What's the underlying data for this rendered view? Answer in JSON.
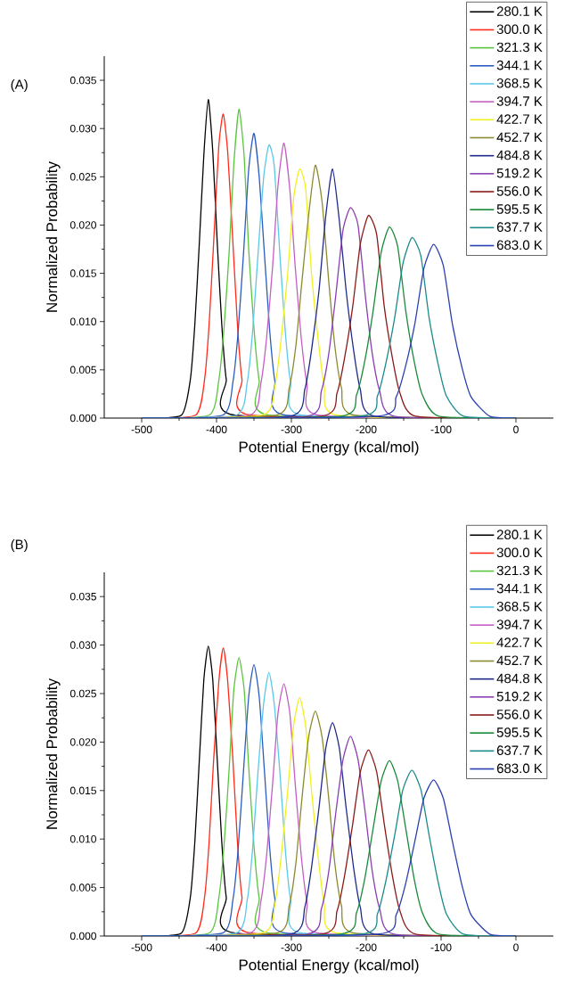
{
  "chart_data": [
    {
      "type": "line",
      "title": "(A)",
      "xlabel": "Potential Energy (kcal/mol)",
      "ylabel": "Normalized Probability",
      "xlim": [
        -550,
        50
      ],
      "ylim": [
        0,
        0.0375
      ],
      "xticks": [
        -500,
        -400,
        -300,
        -200,
        -100,
        0
      ],
      "yticks": [
        {
          "value": 0,
          "label": "0.000"
        },
        {
          "value": 0.005,
          "label": "0.005"
        },
        {
          "value": 0.01,
          "label": "0.010"
        },
        {
          "value": 0.015,
          "label": "0.015"
        },
        {
          "value": 0.02,
          "label": "0.020"
        },
        {
          "value": 0.025,
          "label": "0.025"
        },
        {
          "value": 0.03,
          "label": "0.030"
        },
        {
          "value": 0.035,
          "label": "0.035"
        }
      ],
      "legend": "top right",
      "series": [
        {
          "name": "280.1 K",
          "color": "#000000",
          "x": [
            -500,
            -447,
            -435,
            -429,
            -423,
            -417,
            -411,
            -405,
            -399,
            -393,
            -387,
            -375,
            0
          ],
          "values": [
            0,
            0.0003,
            0.004,
            0.0097,
            0.0181,
            0.0272,
            0.033,
            0.0276,
            0.0181,
            0.0097,
            0.004,
            0.0003,
            0
          ]
        },
        {
          "name": "300.0 K",
          "color": "#ff2a1a",
          "x": [
            -500,
            -428,
            -416,
            -410,
            -404,
            -397,
            -391,
            -385,
            -378,
            -372,
            -366,
            -354,
            0
          ],
          "values": [
            0,
            0.0003,
            0.004,
            0.0096,
            0.018,
            0.0282,
            0.0315,
            0.0275,
            0.018,
            0.0096,
            0.004,
            0.0003,
            0
          ]
        },
        {
          "name": "321.3 K",
          "color": "#5bc43f",
          "x": [
            -500,
            -410,
            -397,
            -390,
            -383,
            -377,
            -370,
            -363,
            -357,
            -350,
            -343,
            -330,
            0
          ],
          "values": [
            0,
            0.0003,
            0.0039,
            0.0093,
            0.0174,
            0.0262,
            0.032,
            0.027,
            0.0174,
            0.0093,
            0.0039,
            0.0003,
            0
          ]
        },
        {
          "name": "344.1 K",
          "color": "#2b5cbf",
          "x": [
            -500,
            -392,
            -378,
            -371,
            -364,
            -357,
            -350,
            -343,
            -336,
            -329,
            -322,
            -308,
            0
          ],
          "values": [
            0,
            0.0003,
            0.0038,
            0.0091,
            0.017,
            0.0258,
            0.0295,
            0.025,
            0.017,
            0.0091,
            0.0038,
            0.0003,
            0
          ]
        },
        {
          "name": "368.5 K",
          "color": "#5bc8e8",
          "x": [
            -500,
            -374,
            -359,
            -352,
            -345,
            -337,
            -330,
            -323,
            -315,
            -308,
            -301,
            -286,
            0
          ],
          "values": [
            0,
            0.0003,
            0.0037,
            0.0088,
            0.0165,
            0.025,
            0.0283,
            0.0262,
            0.0165,
            0.0088,
            0.0037,
            0.0003,
            0
          ]
        },
        {
          "name": "394.7 K",
          "color": "#c45fc4",
          "x": [
            -500,
            -356,
            -341,
            -333,
            -325,
            -318,
            -310,
            -302,
            -295,
            -287,
            -279,
            -264,
            0
          ],
          "values": [
            0,
            0.0003,
            0.0035,
            0.0084,
            0.0158,
            0.024,
            0.0285,
            0.0236,
            0.0158,
            0.0084,
            0.0035,
            0.0003,
            0
          ]
        },
        {
          "name": "422.7 K",
          "color": "#f0f020",
          "x": [
            -500,
            -339,
            -322,
            -314,
            -305,
            -297,
            -289,
            -281,
            -273,
            -264,
            -256,
            -239,
            0
          ],
          "values": [
            0,
            0.0003,
            0.0033,
            0.008,
            0.0149,
            0.0228,
            0.0258,
            0.0238,
            0.0149,
            0.008,
            0.0033,
            0.0003,
            0
          ]
        },
        {
          "name": "452.7 K",
          "color": "#8a8a30",
          "x": [
            -500,
            -320,
            -303,
            -294,
            -286,
            -277,
            -268,
            -259,
            -250,
            -242,
            -233,
            -216,
            0
          ],
          "values": [
            0,
            0.0003,
            0.0031,
            0.0075,
            0.0141,
            0.021,
            0.0262,
            0.0224,
            0.0141,
            0.0075,
            0.0031,
            0.0003,
            0
          ]
        },
        {
          "name": "484.8 K",
          "color": "#1f2a8a",
          "x": [
            -500,
            -301,
            -282,
            -273,
            -263,
            -254,
            -245,
            -236,
            -227,
            -217,
            -208,
            -189,
            0
          ],
          "values": [
            0,
            0.0002,
            0.003,
            0.0071,
            0.0133,
            0.021,
            0.0258,
            0.0205,
            0.0133,
            0.0071,
            0.003,
            0.0002,
            0
          ]
        },
        {
          "name": "519.2 K",
          "color": "#8a3fb0",
          "x": [
            -500,
            -279,
            -260,
            -250,
            -241,
            -231,
            -221,
            -211,
            -201,
            -192,
            -182,
            -163,
            0
          ],
          "values": [
            0,
            0.0002,
            0.0028,
            0.0067,
            0.0125,
            0.0195,
            0.0218,
            0.02,
            0.0125,
            0.0067,
            0.0028,
            0.0002,
            0
          ]
        },
        {
          "name": "556.0 K",
          "color": "#8a1a1a",
          "x": [
            -500,
            -260,
            -239,
            -229,
            -218,
            -208,
            -197,
            -186,
            -176,
            -165,
            -155,
            -134,
            0
          ],
          "values": [
            0,
            0.0002,
            0.0026,
            0.0062,
            0.0116,
            0.018,
            0.021,
            0.019,
            0.0116,
            0.0062,
            0.0026,
            0.0002,
            0
          ]
        },
        {
          "name": "595.5 K",
          "color": "#1a8a3a",
          "x": [
            -500,
            -235,
            -213,
            -202,
            -191,
            -180,
            -169,
            -158,
            -147,
            -136,
            -125,
            -103,
            0
          ],
          "values": [
            0,
            0.0002,
            0.0024,
            0.0059,
            0.011,
            0.0172,
            0.0198,
            0.0178,
            0.011,
            0.0059,
            0.0024,
            0.0002,
            0
          ]
        },
        {
          "name": "637.7 K",
          "color": "#1a8a8a",
          "x": [
            -500,
            -208,
            -185,
            -174,
            -162,
            -151,
            -139,
            -127,
            -116,
            -104,
            -93,
            -70,
            0
          ],
          "values": [
            0,
            0.0002,
            0.0023,
            0.0056,
            0.0104,
            0.016,
            0.0187,
            0.0168,
            0.0104,
            0.0056,
            0.0023,
            0.0002,
            0
          ]
        },
        {
          "name": "683.0 K",
          "color": "#2a3fb0",
          "x": [
            -500,
            -185,
            -160,
            -148,
            -135,
            -123,
            -110,
            -97,
            -85,
            -72,
            -60,
            -35,
            0
          ],
          "values": [
            0,
            0.0002,
            0.0022,
            0.0052,
            0.0098,
            0.0155,
            0.018,
            0.0158,
            0.0098,
            0.0052,
            0.0022,
            0.0002,
            0
          ]
        }
      ]
    },
    {
      "type": "line",
      "title": "(B)",
      "xlabel": "Potential Energy (kcal/mol)",
      "ylabel": "Normalized Probability",
      "xlim": [
        -550,
        50
      ],
      "ylim": [
        0,
        0.0375
      ],
      "xticks": [
        -500,
        -400,
        -300,
        -200,
        -100,
        0
      ],
      "yticks": [
        {
          "value": 0,
          "label": "0.000"
        },
        {
          "value": 0.005,
          "label": "0.005"
        },
        {
          "value": 0.01,
          "label": "0.010"
        },
        {
          "value": 0.015,
          "label": "0.015"
        },
        {
          "value": 0.02,
          "label": "0.020"
        },
        {
          "value": 0.025,
          "label": "0.025"
        },
        {
          "value": 0.03,
          "label": "0.030"
        },
        {
          "value": 0.035,
          "label": "0.035"
        }
      ],
      "legend": "top right",
      "series": [
        {
          "name": "280.1 K",
          "color": "#000000",
          "x": [
            -500,
            -447,
            -435,
            -429,
            -423,
            -417,
            -411,
            -405,
            -399,
            -393,
            -387,
            -375,
            0
          ],
          "values": [
            0,
            0.0003,
            0.004,
            0.0097,
            0.0181,
            0.0264,
            0.0299,
            0.0264,
            0.0181,
            0.0097,
            0.004,
            0.0003,
            0
          ]
        },
        {
          "name": "300.0 K",
          "color": "#ff2a1a",
          "x": [
            -500,
            -428,
            -416,
            -410,
            -404,
            -397,
            -391,
            -385,
            -378,
            -372,
            -366,
            -354,
            0
          ],
          "values": [
            0,
            0.0003,
            0.004,
            0.0096,
            0.018,
            0.0262,
            0.0297,
            0.0262,
            0.018,
            0.0096,
            0.004,
            0.0003,
            0
          ]
        },
        {
          "name": "321.3 K",
          "color": "#5bc43f",
          "x": [
            -500,
            -410,
            -397,
            -390,
            -383,
            -377,
            -370,
            -363,
            -357,
            -350,
            -343,
            -330,
            0
          ],
          "values": [
            0,
            0.0003,
            0.0039,
            0.0093,
            0.0174,
            0.0253,
            0.0287,
            0.0253,
            0.0174,
            0.0093,
            0.0039,
            0.0003,
            0
          ]
        },
        {
          "name": "344.1 K",
          "color": "#2b5cbf",
          "x": [
            -500,
            -392,
            -378,
            -371,
            -364,
            -357,
            -350,
            -343,
            -336,
            -329,
            -322,
            -308,
            0
          ],
          "values": [
            0,
            0.0003,
            0.0038,
            0.0091,
            0.017,
            0.0247,
            0.028,
            0.0247,
            0.017,
            0.0091,
            0.0038,
            0.0003,
            0
          ]
        },
        {
          "name": "368.5 K",
          "color": "#5bc8e8",
          "x": [
            -500,
            -374,
            -359,
            -352,
            -345,
            -337,
            -330,
            -323,
            -315,
            -308,
            -301,
            -286,
            0
          ],
          "values": [
            0,
            0.0003,
            0.0037,
            0.0088,
            0.0165,
            0.024,
            0.0272,
            0.024,
            0.0165,
            0.0088,
            0.0037,
            0.0003,
            0
          ]
        },
        {
          "name": "394.7 K",
          "color": "#c45fc4",
          "x": [
            -500,
            -356,
            -341,
            -333,
            -325,
            -318,
            -310,
            -302,
            -295,
            -287,
            -279,
            -264,
            0
          ],
          "values": [
            0,
            0.0003,
            0.0035,
            0.0084,
            0.0158,
            0.0229,
            0.026,
            0.0229,
            0.0158,
            0.0084,
            0.0035,
            0.0003,
            0
          ]
        },
        {
          "name": "422.7 K",
          "color": "#f0f020",
          "x": [
            -500,
            -339,
            -322,
            -314,
            -305,
            -297,
            -289,
            -281,
            -273,
            -264,
            -256,
            -239,
            0
          ],
          "values": [
            0,
            0.0003,
            0.0033,
            0.008,
            0.0149,
            0.0217,
            0.0246,
            0.0217,
            0.0149,
            0.008,
            0.0033,
            0.0003,
            0
          ]
        },
        {
          "name": "452.7 K",
          "color": "#8a8a30",
          "x": [
            -500,
            -320,
            -303,
            -294,
            -286,
            -277,
            -268,
            -259,
            -250,
            -242,
            -233,
            -216,
            0
          ],
          "values": [
            0,
            0.0003,
            0.0031,
            0.0075,
            0.0141,
            0.0205,
            0.0232,
            0.0205,
            0.0141,
            0.0075,
            0.0031,
            0.0003,
            0
          ]
        },
        {
          "name": "484.8 K",
          "color": "#1f2a8a",
          "x": [
            -500,
            -301,
            -282,
            -273,
            -263,
            -254,
            -245,
            -236,
            -227,
            -217,
            -208,
            -189,
            0
          ],
          "values": [
            0,
            0.0002,
            0.003,
            0.0071,
            0.0133,
            0.0194,
            0.022,
            0.0194,
            0.0133,
            0.0071,
            0.003,
            0.0002,
            0
          ]
        },
        {
          "name": "519.2 K",
          "color": "#8a3fb0",
          "x": [
            -500,
            -279,
            -260,
            -250,
            -241,
            -231,
            -221,
            -211,
            -201,
            -192,
            -182,
            -163,
            0
          ],
          "values": [
            0,
            0.0002,
            0.0028,
            0.0067,
            0.0125,
            0.0182,
            0.0206,
            0.0182,
            0.0125,
            0.0067,
            0.0028,
            0.0002,
            0
          ]
        },
        {
          "name": "556.0 K",
          "color": "#8a1a1a",
          "x": [
            -500,
            -260,
            -239,
            -229,
            -218,
            -208,
            -197,
            -186,
            -176,
            -165,
            -155,
            -134,
            0
          ],
          "values": [
            0,
            0.0002,
            0.0026,
            0.0062,
            0.0116,
            0.0169,
            0.0192,
            0.0169,
            0.0116,
            0.0062,
            0.0026,
            0.0002,
            0
          ]
        },
        {
          "name": "595.5 K",
          "color": "#1a8a3a",
          "x": [
            -500,
            -235,
            -213,
            -202,
            -191,
            -180,
            -169,
            -158,
            -147,
            -136,
            -125,
            -103,
            0
          ],
          "values": [
            0,
            0.0002,
            0.0024,
            0.0059,
            0.011,
            0.016,
            0.0181,
            0.016,
            0.011,
            0.0059,
            0.0024,
            0.0002,
            0
          ]
        },
        {
          "name": "637.7 K",
          "color": "#1a8a8a",
          "x": [
            -500,
            -208,
            -185,
            -174,
            -162,
            -151,
            -139,
            -127,
            -116,
            -104,
            -93,
            -70,
            0
          ],
          "values": [
            0,
            0.0002,
            0.0023,
            0.0056,
            0.0104,
            0.0151,
            0.0171,
            0.0151,
            0.0104,
            0.0056,
            0.0023,
            0.0002,
            0
          ]
        },
        {
          "name": "683.0 K",
          "color": "#2a3fb0",
          "x": [
            -500,
            -185,
            -160,
            -148,
            -135,
            -123,
            -110,
            -97,
            -85,
            -72,
            -60,
            -35,
            0
          ],
          "values": [
            0,
            0.0002,
            0.0022,
            0.0052,
            0.0098,
            0.0142,
            0.0161,
            0.0142,
            0.0098,
            0.0052,
            0.0022,
            0.0002,
            0
          ]
        }
      ]
    }
  ]
}
